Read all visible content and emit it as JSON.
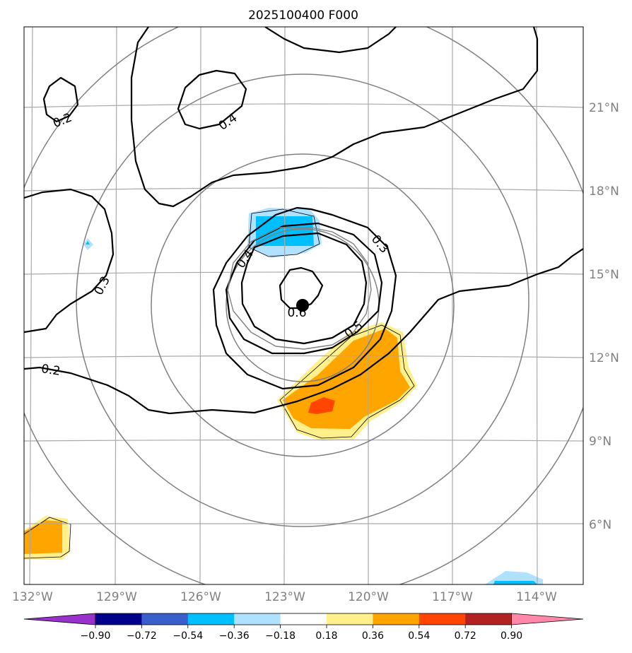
{
  "chart_data": {
    "type": "contour",
    "title": "2025100400 F000",
    "x_ticks": [
      "132°W",
      "129°W",
      "126°W",
      "123°W",
      "120°W",
      "117°W",
      "114°W"
    ],
    "y_ticks": [
      "6°N",
      "9°N",
      "12°N",
      "15°N",
      "18°N",
      "21°N"
    ],
    "xlim": [
      -132.3,
      -112.2
    ],
    "ylim": [
      3.8,
      23.8
    ],
    "grid": true,
    "center": {
      "lon": -122.4,
      "lat": 13.9
    },
    "range_rings_deg": [
      2.7,
      5.4,
      8.2,
      10.9
    ],
    "contour_labels": [
      "0.2",
      "0.4",
      "0.2",
      "0.3",
      "0.4",
      "0.3",
      "0.5",
      "0.6",
      "0.2"
    ],
    "colorbar": {
      "ticks": [
        "−0.90",
        "−0.72",
        "−0.54",
        "−0.36",
        "−0.18",
        "0.18",
        "0.36",
        "0.54",
        "0.72",
        "0.90"
      ],
      "colors": [
        "#9932cc",
        "#00008b",
        "#3a5fcd",
        "#00bfff",
        "#b0e2ff",
        "#ffffff",
        "#fff08c",
        "#ffa500",
        "#ff4500",
        "#b22222",
        "#ff88aa"
      ]
    }
  }
}
